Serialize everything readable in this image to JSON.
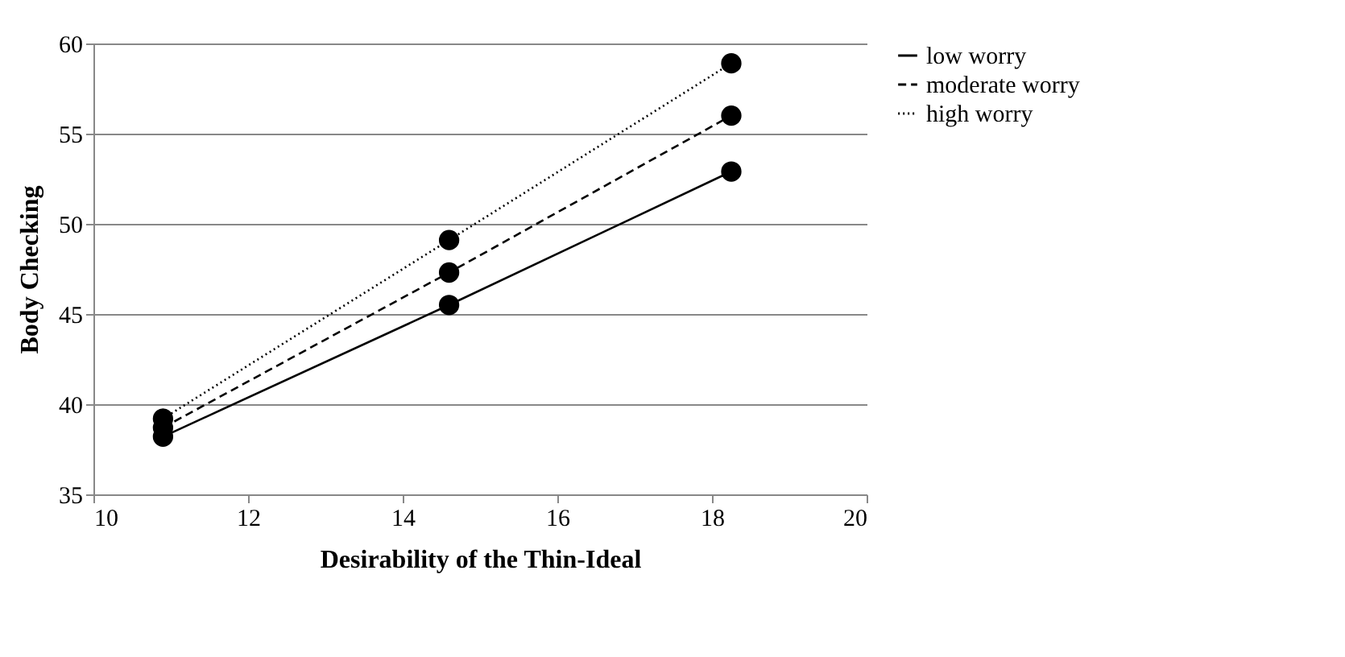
{
  "chart_data": {
    "type": "line",
    "xlabel": "Desirability of the Thin-Ideal",
    "ylabel": "Body Checking",
    "x": [
      10.9,
      14.6,
      18.25
    ],
    "series": [
      {
        "name": "low worry",
        "color": "#000000",
        "line_style": "solid",
        "values": [
          38.2,
          45.5,
          52.9
        ]
      },
      {
        "name": "moderate worry",
        "color": "#000000",
        "line_style": "dashed",
        "values": [
          38.7,
          47.3,
          56.0
        ]
      },
      {
        "name": "high worry",
        "color": "#000000",
        "line_style": "dotted",
        "values": [
          39.2,
          49.1,
          58.9
        ]
      }
    ],
    "xlim": [
      10,
      20
    ],
    "xticks": [
      10,
      12,
      14,
      16,
      18,
      20
    ],
    "ylim": [
      35,
      60
    ],
    "yticks": [
      35,
      40,
      45,
      50,
      55,
      60
    ],
    "grid": "y",
    "legend": "right",
    "marker": "circle"
  }
}
